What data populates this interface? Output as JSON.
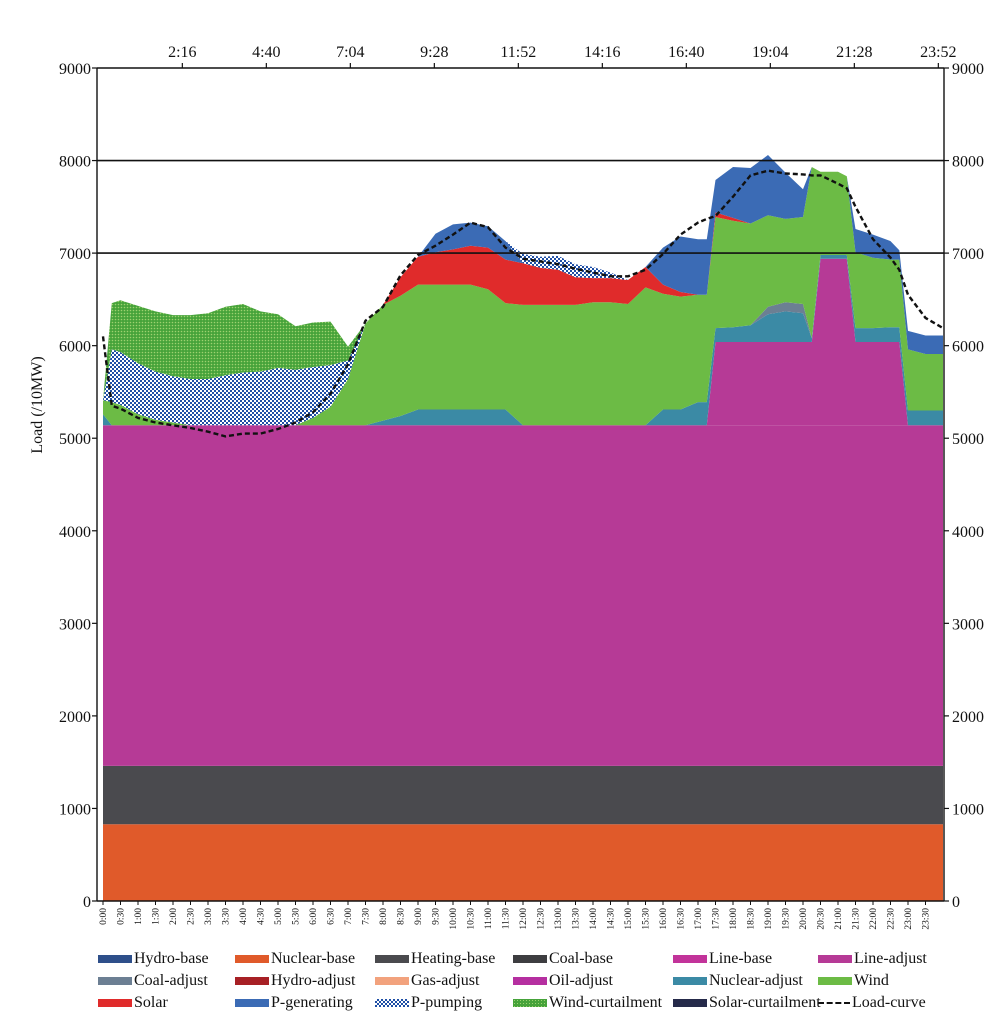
{
  "chart_data": {
    "type": "area",
    "title": "",
    "ylabel": "Load (/10MW)",
    "xlabel": "",
    "ylim": [
      0,
      9000
    ],
    "xlim_hours": [
      0,
      24
    ],
    "y_ticks": [
      0,
      1000,
      2000,
      3000,
      4000,
      5000,
      6000,
      7000,
      8000,
      9000
    ],
    "y_tick_labels_left": [
      "0",
      "1000",
      "2000",
      "3000",
      "4000",
      "5000",
      "6000",
      "7000",
      "8000",
      "9000"
    ],
    "y_tick_labels_right": [
      "0",
      "1000",
      "2000",
      "3000",
      "4000",
      "5000",
      "6000",
      "7000",
      "8000",
      "9000"
    ],
    "top_x_ticks": [
      "2:16",
      "4:40",
      "7:04",
      "9:28",
      "11:52",
      "14:16",
      "16:40",
      "19:04",
      "21:28",
      "23:52"
    ],
    "bottom_x_ticks": [
      "0:00",
      "0:30",
      "1:00",
      "1:30",
      "2:00",
      "2:30",
      "3:00",
      "3:30",
      "4:00",
      "4:30",
      "5:00",
      "5:30",
      "6:00",
      "6:30",
      "7:00",
      "7:30",
      "8:00",
      "8:30",
      "9:00",
      "9:30",
      "10:00",
      "10:30",
      "11:00",
      "11:30",
      "12:00",
      "12:30",
      "13:00",
      "13:30",
      "14:00",
      "14:30",
      "15:00",
      "15:30",
      "16:00",
      "16:30",
      "17:00",
      "17:30",
      "18:00",
      "18:30",
      "19:00",
      "19:30",
      "20:00",
      "20:30",
      "21:00",
      "21:30",
      "22:00",
      "22:30",
      "23:00",
      "23:30"
    ],
    "horizontal_gridlines": [
      7000,
      8000
    ],
    "legend_position": "bottom",
    "legend": [
      {
        "name": "Hydro-base",
        "color": "#2e4f8a",
        "style": "solid"
      },
      {
        "name": "Nuclear-base",
        "color": "#e05a2a",
        "style": "solid"
      },
      {
        "name": "Heating-base",
        "color": "#4a4a4e",
        "style": "solid"
      },
      {
        "name": "Coal-base",
        "color": "#3d3d40",
        "style": "solid"
      },
      {
        "name": "Line-base",
        "color": "#c2339a",
        "style": "solid"
      },
      {
        "name": "Line-adjust",
        "color": "#b63a96",
        "style": "solid"
      },
      {
        "name": "Coal-adjust",
        "color": "#6c7f93",
        "style": "solid"
      },
      {
        "name": "Hydro-adjust",
        "color": "#a72025",
        "style": "solid"
      },
      {
        "name": "Gas-adjust",
        "color": "#f2a27d",
        "style": "solid"
      },
      {
        "name": "Oil-adjust",
        "color": "#b52fa0",
        "style": "solid"
      },
      {
        "name": "Nuclear-adjust",
        "color": "#3b8aa5",
        "style": "solid"
      },
      {
        "name": "Wind",
        "color": "#6cbb45",
        "style": "solid"
      },
      {
        "name": "Solar",
        "color": "#e02b2b",
        "style": "solid"
      },
      {
        "name": "P-generating",
        "color": "#3b6bb5",
        "style": "solid"
      },
      {
        "name": "P-pumping",
        "color": "#1f4fa6",
        "style": "check"
      },
      {
        "name": "Wind-curtailment",
        "color": "#46a33a",
        "style": "dots"
      },
      {
        "name": "Solar-curtailment",
        "color": "#252a4a",
        "style": "solid"
      },
      {
        "name": "Load-curve",
        "color": "#111111",
        "style": "dash"
      }
    ],
    "stack": {
      "hours": [
        0,
        0.25,
        0.5,
        1,
        1.5,
        2,
        2.5,
        3,
        3.5,
        4,
        4.5,
        5,
        5.5,
        6,
        6.5,
        7,
        7.5,
        8,
        8.5,
        9,
        9.5,
        10,
        10.5,
        11,
        11.5,
        12,
        12.5,
        13,
        13.5,
        14,
        14.5,
        15,
        15.5,
        16,
        16.5,
        17,
        17.25,
        17.5,
        18,
        18.5,
        19,
        19.5,
        20,
        20.25,
        20.5,
        21,
        21.25,
        21.5,
        22,
        22.5,
        22.75,
        23,
        23.5,
        24
      ],
      "series": [
        {
          "name": "Nuclear-base",
          "color": "#e05a2a",
          "values": [
            830,
            830,
            830,
            830,
            830,
            830,
            830,
            830,
            830,
            830,
            830,
            830,
            830,
            830,
            830,
            830,
            830,
            830,
            830,
            830,
            830,
            830,
            830,
            830,
            830,
            830,
            830,
            830,
            830,
            830,
            830,
            830,
            830,
            830,
            830,
            830,
            830,
            830,
            830,
            830,
            830,
            830,
            830,
            830,
            830,
            830,
            830,
            830,
            830,
            830,
            830,
            830,
            830,
            830
          ]
        },
        {
          "name": "Heating-base",
          "color": "#4a4a4e",
          "values": [
            630,
            630,
            630,
            630,
            630,
            630,
            630,
            630,
            630,
            630,
            630,
            630,
            630,
            630,
            630,
            630,
            630,
            630,
            630,
            630,
            630,
            630,
            630,
            630,
            630,
            630,
            630,
            630,
            630,
            630,
            630,
            630,
            630,
            630,
            630,
            630,
            630,
            630,
            630,
            630,
            630,
            630,
            630,
            630,
            630,
            630,
            630,
            630,
            630,
            630,
            630,
            630,
            630,
            630
          ]
        },
        {
          "name": "Line-base",
          "color": "#b63a96",
          "values": [
            3680,
            3680,
            3680,
            3680,
            3680,
            3680,
            3680,
            3680,
            3680,
            3680,
            3680,
            3680,
            3680,
            3680,
            3680,
            3680,
            3680,
            3680,
            3680,
            3680,
            3680,
            3680,
            3680,
            3680,
            3680,
            3680,
            3680,
            3680,
            3680,
            3680,
            3680,
            3680,
            3680,
            3680,
            3680,
            3680,
            3680,
            3680,
            3680,
            3680,
            3680,
            3680,
            3680,
            3680,
            3680,
            3680,
            3680,
            3680,
            3680,
            3680,
            3680,
            3680,
            3680,
            3680
          ]
        },
        {
          "name": "Line-adjust",
          "color": "#b63a96",
          "values": [
            0,
            0,
            0,
            0,
            0,
            0,
            0,
            0,
            0,
            0,
            0,
            0,
            0,
            0,
            0,
            0,
            0,
            0,
            0,
            0,
            0,
            0,
            0,
            0,
            0,
            0,
            0,
            0,
            0,
            0,
            0,
            0,
            0,
            0,
            0,
            0,
            0,
            900,
            900,
            900,
            900,
            900,
            900,
            900,
            1800,
            1800,
            1800,
            900,
            900,
            900,
            900,
            0,
            0,
            0
          ]
        },
        {
          "name": "Nuclear-adjust",
          "color": "#3b8aa5",
          "values": [
            120,
            0,
            0,
            0,
            0,
            0,
            0,
            0,
            0,
            0,
            0,
            0,
            0,
            0,
            0,
            0,
            0,
            50,
            100,
            170,
            170,
            170,
            170,
            170,
            170,
            0,
            0,
            0,
            0,
            0,
            0,
            0,
            0,
            170,
            170,
            250,
            250,
            150,
            160,
            180,
            300,
            330,
            310,
            40,
            40,
            40,
            40,
            150,
            150,
            160,
            160,
            160,
            160,
            160
          ]
        },
        {
          "name": "Coal-adjust",
          "color": "#6c7f93",
          "values": [
            0,
            0,
            0,
            0,
            0,
            0,
            0,
            0,
            0,
            0,
            0,
            0,
            0,
            0,
            0,
            0,
            0,
            0,
            0,
            0,
            0,
            0,
            0,
            0,
            0,
            0,
            0,
            0,
            0,
            0,
            0,
            0,
            0,
            0,
            0,
            0,
            0,
            0,
            0,
            0,
            80,
            100,
            100,
            0,
            0,
            0,
            0,
            0,
            0,
            0,
            0,
            0,
            0,
            0
          ]
        },
        {
          "name": "Wind",
          "color": "#6cbb45",
          "values": [
            150,
            250,
            220,
            120,
            60,
            30,
            0,
            0,
            0,
            0,
            0,
            0,
            0,
            80,
            200,
            500,
            1100,
            1250,
            1300,
            1350,
            1350,
            1350,
            1350,
            1300,
            1150,
            1300,
            1300,
            1300,
            1300,
            1330,
            1330,
            1310,
            1490,
            1250,
            1220,
            1160,
            1160,
            1200,
            1150,
            1100,
            990,
            900,
            940,
            1850,
            900,
            900,
            850,
            820,
            760,
            730,
            730,
            660,
            610,
            610
          ]
        },
        {
          "name": "Solar",
          "color": "#e02b2b",
          "values": [
            0,
            0,
            0,
            0,
            0,
            0,
            0,
            0,
            0,
            0,
            0,
            0,
            0,
            0,
            0,
            0,
            0,
            0,
            200,
            300,
            350,
            380,
            420,
            450,
            470,
            450,
            400,
            380,
            300,
            260,
            260,
            260,
            220,
            100,
            50,
            0,
            0,
            50,
            30,
            0,
            0,
            0,
            0,
            0,
            0,
            0,
            0,
            0,
            0,
            0,
            0,
            0,
            0,
            0
          ]
        },
        {
          "name": "P-generating",
          "color": "#3b6bb5",
          "values": [
            0,
            0,
            0,
            0,
            0,
            0,
            0,
            0,
            0,
            0,
            0,
            0,
            0,
            0,
            0,
            0,
            0,
            0,
            0,
            0,
            200,
            270,
            250,
            230,
            200,
            0,
            0,
            0,
            0,
            0,
            0,
            0,
            0,
            400,
            600,
            600,
            600,
            350,
            550,
            600,
            650,
            500,
            300,
            0,
            0,
            0,
            0,
            250,
            250,
            200,
            100,
            200,
            200,
            200
          ]
        },
        {
          "name": "P-pumping",
          "color": "#1f4fa6",
          "values": [
            0,
            570,
            570,
            550,
            520,
            500,
            500,
            500,
            540,
            570,
            580,
            620,
            600,
            550,
            450,
            200,
            0,
            0,
            0,
            0,
            0,
            0,
            0,
            0,
            0,
            100,
            120,
            150,
            140,
            120,
            60,
            0,
            0,
            0,
            0,
            0,
            0,
            0,
            0,
            0,
            0,
            0,
            0,
            0,
            0,
            0,
            0,
            0,
            0,
            0,
            0,
            0,
            0,
            0
          ]
        },
        {
          "name": "Wind-curtailment",
          "color": "#46a33a",
          "values": [
            0,
            500,
            560,
            620,
            650,
            660,
            690,
            710,
            740,
            740,
            650,
            580,
            470,
            480,
            470,
            150,
            0,
            0,
            0,
            0,
            0,
            0,
            0,
            0,
            0,
            0,
            0,
            0,
            0,
            0,
            0,
            0,
            0,
            0,
            0,
            0,
            0,
            0,
            0,
            0,
            0,
            0,
            0,
            0,
            0,
            0,
            0,
            0,
            0,
            0,
            0,
            0,
            0,
            0
          ]
        }
      ]
    },
    "load_curve": {
      "name": "Load-curve",
      "hours": [
        0,
        0.25,
        0.5,
        1,
        1.5,
        2,
        2.5,
        3,
        3.5,
        4,
        4.5,
        5,
        5.5,
        6,
        6.5,
        7,
        7.5,
        8,
        8.5,
        9,
        9.5,
        10,
        10.5,
        11,
        11.5,
        12,
        12.5,
        13,
        13.5,
        14,
        14.5,
        15,
        15.5,
        16,
        16.5,
        17,
        17.25,
        17.5,
        18,
        18.5,
        19,
        19.5,
        20,
        20.25,
        20.5,
        21,
        21.25,
        21.5,
        22,
        22.5,
        22.75,
        23,
        23.5,
        24
      ],
      "values": [
        6100,
        5350,
        5320,
        5220,
        5170,
        5140,
        5110,
        5070,
        5020,
        5050,
        5050,
        5100,
        5170,
        5280,
        5480,
        5800,
        6270,
        6420,
        6760,
        6980,
        7080,
        7200,
        7330,
        7280,
        7060,
        6940,
        6910,
        6880,
        6830,
        6790,
        6750,
        6750,
        6820,
        6990,
        7200,
        7330,
        7370,
        7400,
        7610,
        7840,
        7890,
        7860,
        7850,
        7840,
        7840,
        7750,
        7700,
        7500,
        7150,
        6950,
        6820,
        6550,
        6300,
        6190
      ]
    }
  }
}
